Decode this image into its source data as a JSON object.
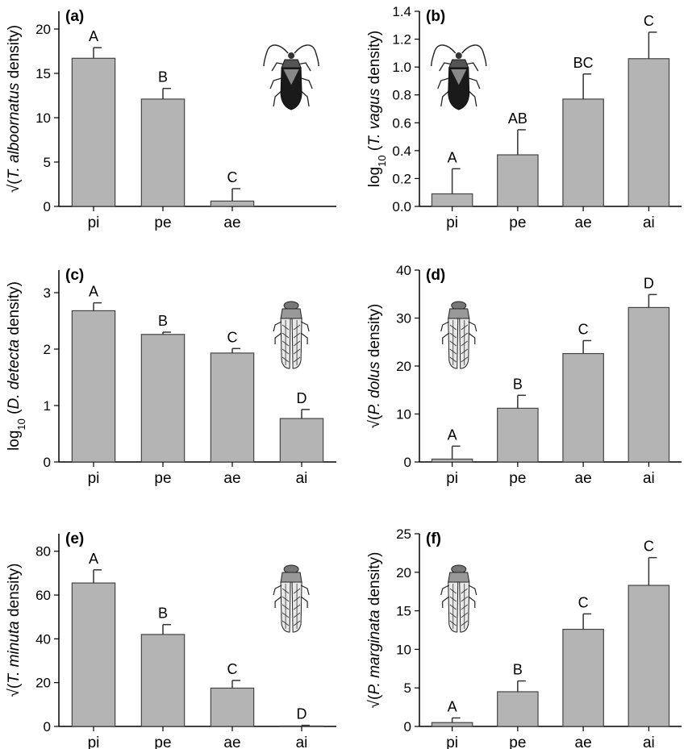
{
  "colors": {
    "bar_fill": "#b4b4b4",
    "bar_stroke": "#444444",
    "axis": "#000000"
  },
  "chart_data": [
    {
      "panel": "(a)",
      "type": "bar",
      "ylabel_parts": [
        {
          "t": "√("
        },
        {
          "t": "T. alboornatus",
          "i": true
        },
        {
          "t": " density)"
        }
      ],
      "categories": [
        "pi",
        "pe",
        "ae"
      ],
      "values": [
        16.7,
        12.1,
        0.6
      ],
      "errors": [
        1.2,
        1.2,
        1.4
      ],
      "letters": [
        "A",
        "B",
        "C"
      ],
      "ylim": [
        0,
        22
      ],
      "yticks": [
        0,
        5,
        10,
        15,
        20
      ],
      "ytick_labels": [
        "0",
        "5",
        "10",
        "15",
        "20"
      ],
      "n_slots": 4,
      "icon": "bug",
      "icon_pos": "right"
    },
    {
      "panel": "(b)",
      "type": "bar",
      "ylabel_parts": [
        {
          "t": "log"
        },
        {
          "t": "10",
          "sub": true
        },
        {
          "t": " ("
        },
        {
          "t": "T. vagus",
          "i": true
        },
        {
          "t": " density)"
        }
      ],
      "categories": [
        "pi",
        "pe",
        "ae",
        "ai"
      ],
      "values": [
        0.09,
        0.37,
        0.77,
        1.06
      ],
      "errors": [
        0.18,
        0.18,
        0.18,
        0.19
      ],
      "letters": [
        "A",
        "AB",
        "BC",
        "C"
      ],
      "ylim": [
        0,
        1.4
      ],
      "yticks": [
        0,
        0.2,
        0.4,
        0.6,
        0.8,
        1.0,
        1.2,
        1.4
      ],
      "ytick_labels": [
        "0.0",
        "0.2",
        "0.4",
        "0.6",
        "0.8",
        "1.0",
        "1.2",
        "1.4"
      ],
      "n_slots": 4,
      "icon": "bug",
      "icon_pos": "left"
    },
    {
      "panel": "(c)",
      "type": "bar",
      "ylabel_parts": [
        {
          "t": "log"
        },
        {
          "t": "10",
          "sub": true
        },
        {
          "t": " ("
        },
        {
          "t": "D. detecta",
          "i": true
        },
        {
          "t": " density)"
        }
      ],
      "categories": [
        "pi",
        "pe",
        "ae",
        "ai"
      ],
      "values": [
        2.68,
        2.26,
        1.93,
        0.77
      ],
      "errors": [
        0.14,
        0.04,
        0.08,
        0.16
      ],
      "letters": [
        "A",
        "B",
        "C",
        "D"
      ],
      "ylim": [
        0,
        3.4
      ],
      "yticks": [
        0,
        1,
        2,
        3
      ],
      "ytick_labels": [
        "0",
        "1",
        "2",
        "3"
      ],
      "n_slots": 4,
      "icon": "hopper",
      "icon_pos": "right"
    },
    {
      "panel": "(d)",
      "type": "bar",
      "ylabel_parts": [
        {
          "t": "√("
        },
        {
          "t": "P. dolus",
          "i": true
        },
        {
          "t": " density)"
        }
      ],
      "categories": [
        "pi",
        "pe",
        "ae",
        "ai"
      ],
      "values": [
        0.6,
        11.2,
        22.6,
        32.2
      ],
      "errors": [
        2.7,
        2.7,
        2.7,
        2.7
      ],
      "letters": [
        "A",
        "B",
        "C",
        "D"
      ],
      "ylim": [
        0,
        40
      ],
      "yticks": [
        0,
        10,
        20,
        30,
        40
      ],
      "ytick_labels": [
        "0",
        "10",
        "20",
        "30",
        "40"
      ],
      "n_slots": 4,
      "icon": "hopper",
      "icon_pos": "left"
    },
    {
      "panel": "(e)",
      "type": "bar",
      "ylabel_parts": [
        {
          "t": "√("
        },
        {
          "t": "T. minuta",
          "i": true
        },
        {
          "t": " density)"
        }
      ],
      "categories": [
        "pi",
        "pe",
        "ae",
        "ai"
      ],
      "values": [
        65.5,
        42.0,
        17.5,
        0.2
      ],
      "errors": [
        6.0,
        4.5,
        3.5,
        0.3
      ],
      "letters": [
        "A",
        "B",
        "C",
        "D"
      ],
      "ylim": [
        0,
        88
      ],
      "yticks": [
        0,
        20,
        40,
        60,
        80
      ],
      "ytick_labels": [
        "0",
        "20",
        "40",
        "60",
        "80"
      ],
      "n_slots": 4,
      "icon": "hopper",
      "icon_pos": "right"
    },
    {
      "panel": "(f)",
      "type": "bar",
      "ylabel_parts": [
        {
          "t": "√("
        },
        {
          "t": "P. marginata",
          "i": true
        },
        {
          "t": " density)"
        }
      ],
      "categories": [
        "pi",
        "pe",
        "ae",
        "ai"
      ],
      "values": [
        0.5,
        4.5,
        12.6,
        18.3
      ],
      "errors": [
        0.6,
        1.4,
        2.0,
        3.6
      ],
      "letters": [
        "A",
        "B",
        "C",
        "C"
      ],
      "ylim": [
        0,
        25
      ],
      "yticks": [
        0,
        5,
        10,
        15,
        20,
        25
      ],
      "ytick_labels": [
        "0",
        "5",
        "10",
        "15",
        "20",
        "25"
      ],
      "n_slots": 4,
      "icon": "hopper",
      "icon_pos": "left"
    }
  ]
}
